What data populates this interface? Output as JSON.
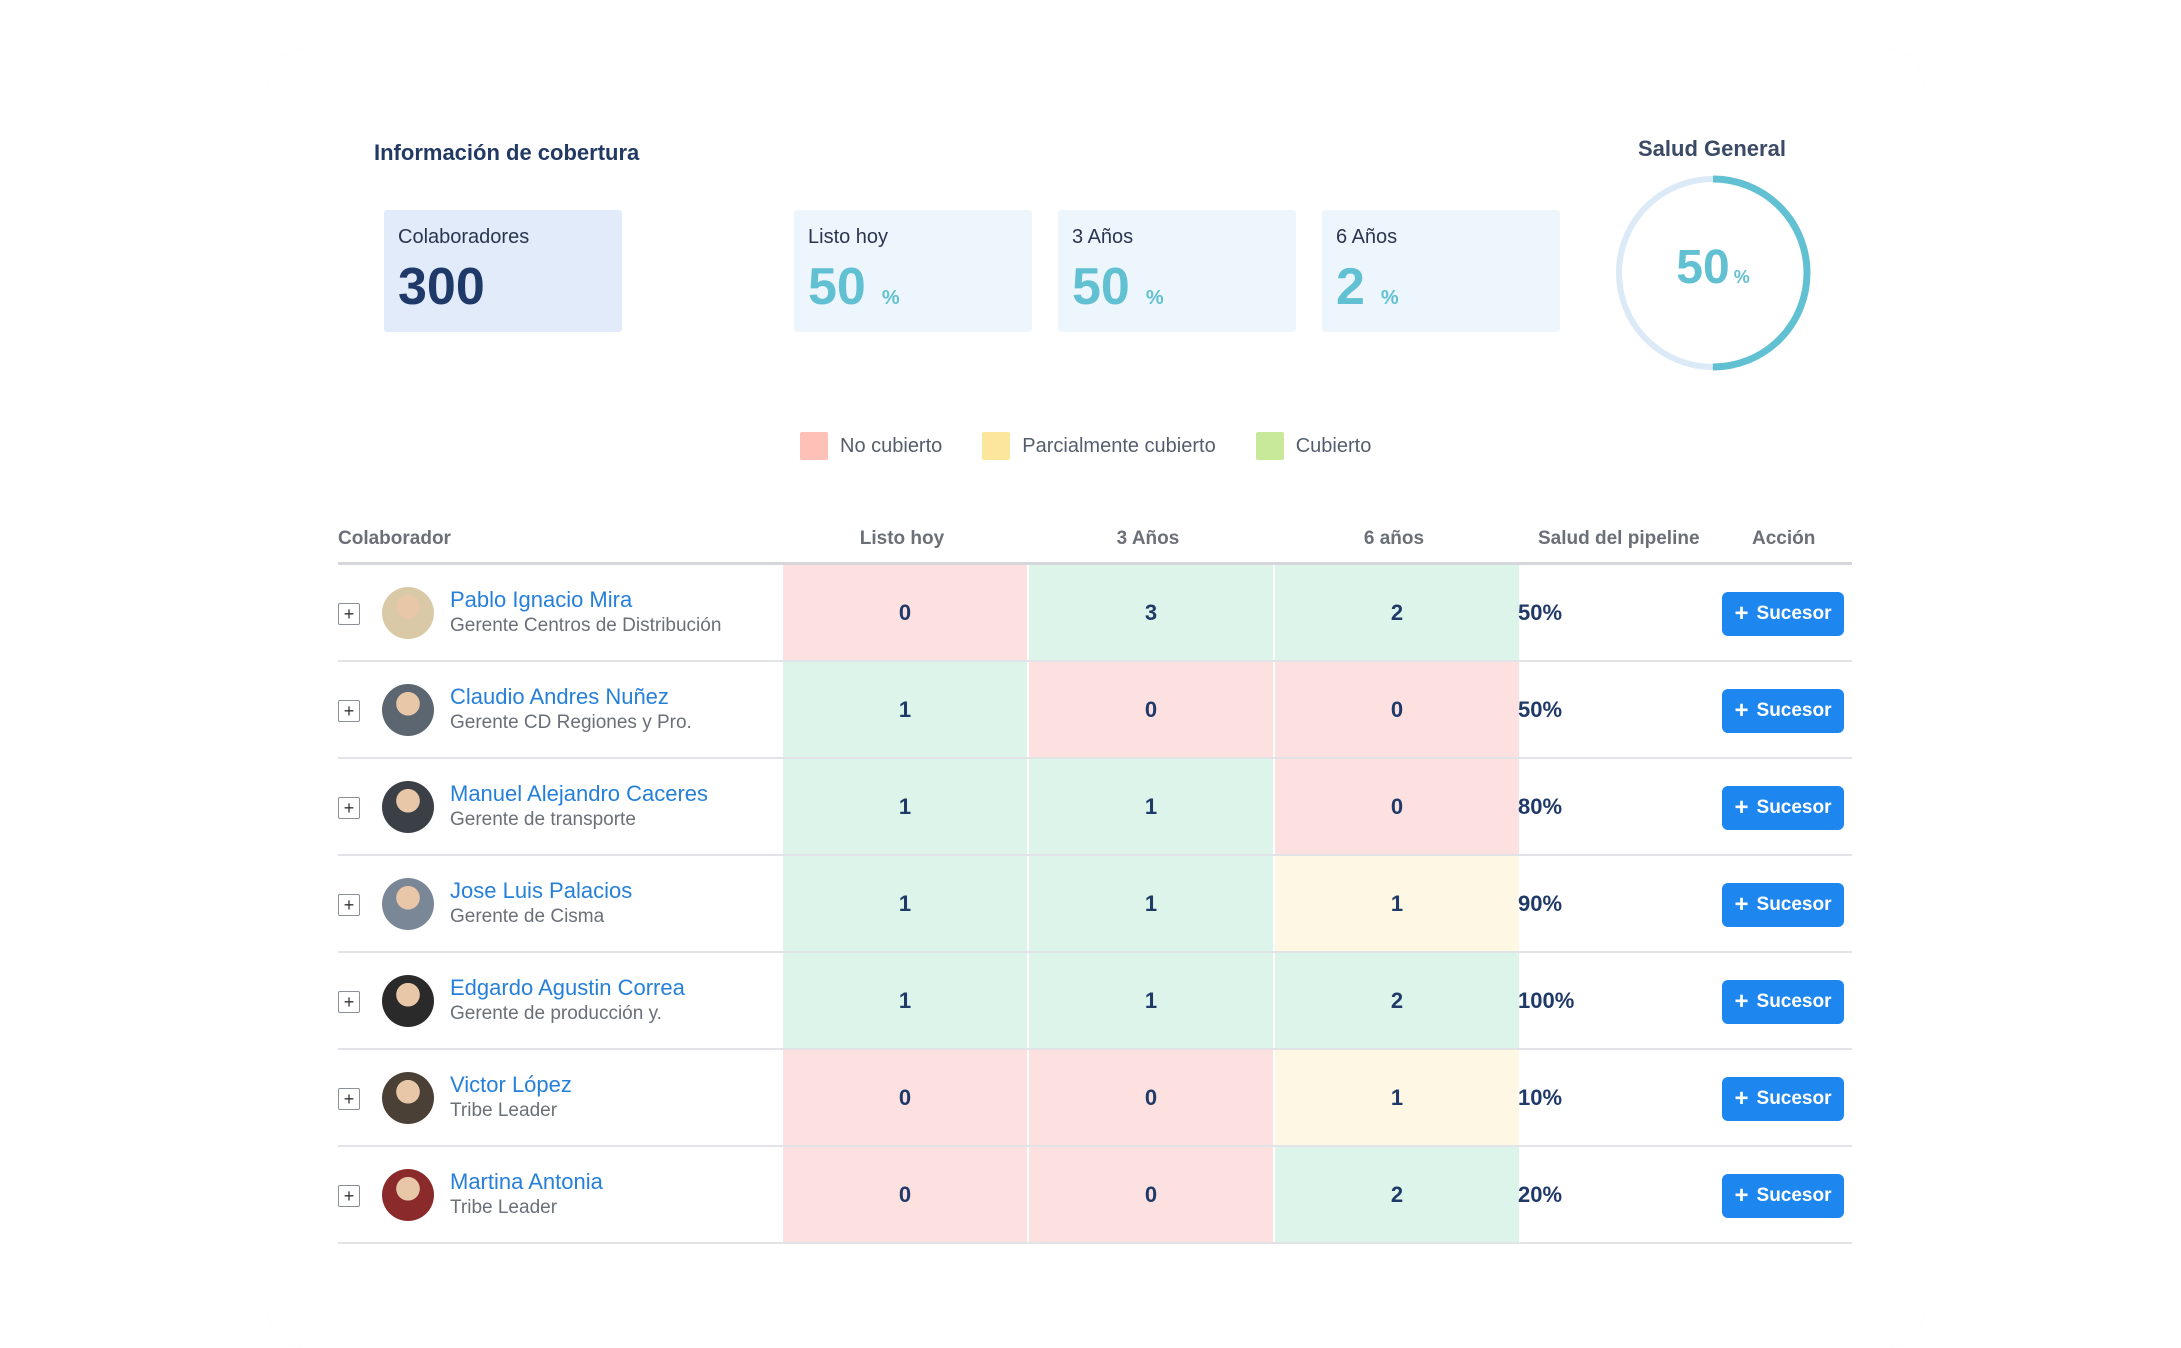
{
  "colors": {
    "not_covered": "#fde1e1",
    "partial": "#fdf7e3",
    "covered": "#ddf4ea",
    "accent": "#62c0d3",
    "button": "#1e86ef"
  },
  "section_title": "Información de cobertura",
  "stats": {
    "collaborators": {
      "label": "Colaboradores",
      "value": "300"
    },
    "ready_today": {
      "label": "Listo hoy",
      "value": "50",
      "unit": "%"
    },
    "three_years": {
      "label": "3 Años",
      "value": "50",
      "unit": "%"
    },
    "six_years": {
      "label": "6 Años",
      "value": "2",
      "unit": "%"
    }
  },
  "gauge": {
    "title": "Salud General",
    "value": "50",
    "unit": "%",
    "fraction": 0.5
  },
  "legend": [
    {
      "label": "No cubierto",
      "color": "#fdc1b8"
    },
    {
      "label": "Parcialmente cubierto",
      "color": "#fbe69b"
    },
    {
      "label": "Cubierto",
      "color": "#c9e99a"
    }
  ],
  "table": {
    "headers": {
      "collaborator": "Colaborador",
      "ready_today": "Listo hoy",
      "three_years": "3 Años",
      "six_years": "6 años",
      "pipeline_health": "Salud del pipeline",
      "action": "Acción"
    },
    "rows": [
      {
        "name": "Pablo Ignacio Mira",
        "role": "Gerente Centros de Distribución",
        "ready": "0",
        "ready_status": "not_covered",
        "y3": "3",
        "y3_status": "covered",
        "y6": "2",
        "y6_status": "covered",
        "health": "50%",
        "action": "Sucesor",
        "avatar_color": "#d9c9a6"
      },
      {
        "name": "Claudio Andres Nuñez",
        "role": "Gerente CD Regiones y Pro.",
        "ready": "1",
        "ready_status": "covered",
        "y3": "0",
        "y3_status": "not_covered",
        "y6": "0",
        "y6_status": "not_covered",
        "health": "50%",
        "action": "Sucesor",
        "avatar_color": "#5b6670"
      },
      {
        "name": "Manuel Alejandro Caceres",
        "role": "Gerente de transporte",
        "ready": "1",
        "ready_status": "covered",
        "y3": "1",
        "y3_status": "covered",
        "y6": "0",
        "y6_status": "not_covered",
        "health": "80%",
        "action": "Sucesor",
        "avatar_color": "#3b3f46"
      },
      {
        "name": "Jose Luis Palacios",
        "role": "Gerente de Cisma",
        "ready": "1",
        "ready_status": "covered",
        "y3": "1",
        "y3_status": "covered",
        "y6": "1",
        "y6_status": "partial",
        "health": "90%",
        "action": "Sucesor",
        "avatar_color": "#7a8796"
      },
      {
        "name": "Edgardo Agustin Correa",
        "role": "Gerente de producción y.",
        "ready": "1",
        "ready_status": "covered",
        "y3": "1",
        "y3_status": "covered",
        "y6": "2",
        "y6_status": "covered",
        "health": "100%",
        "action": "Sucesor",
        "avatar_color": "#2a2a2a"
      },
      {
        "name": "Victor López",
        "role": "Tribe Leader",
        "ready": "0",
        "ready_status": "not_covered",
        "y3": "0",
        "y3_status": "not_covered",
        "y6": "1",
        "y6_status": "partial",
        "health": "10%",
        "action": "Sucesor",
        "avatar_color": "#4a4036"
      },
      {
        "name": "Martina Antonia",
        "role": "Tribe Leader",
        "ready": "0",
        "ready_status": "not_covered",
        "y3": "0",
        "y3_status": "not_covered",
        "y6": "2",
        "y6_status": "covered",
        "health": "20%",
        "action": "Sucesor",
        "avatar_color": "#8a2a2a"
      }
    ]
  }
}
